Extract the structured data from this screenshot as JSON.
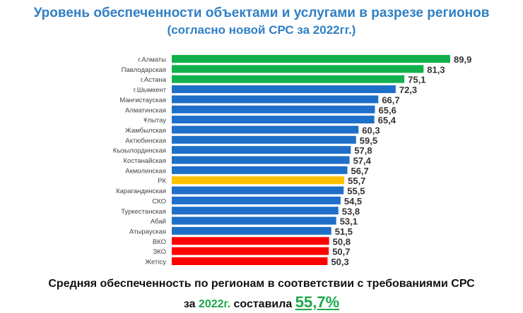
{
  "header": {
    "title": "Уровень обеспеченности объектами и услугами в разрезе регионов",
    "subtitle": "(согласно новой СРС за 2022гг.)"
  },
  "chart_data": {
    "type": "bar",
    "orientation": "horizontal",
    "categories": [
      "г.Алматы",
      "Павлодарская",
      "г.Астана",
      "г.Шымкент",
      "Мангистауская",
      "Алматинская",
      "Ұлытау",
      "Жамбылская",
      "Актюбинская",
      "Кызылординская",
      "Костанайская",
      "Акмолинская",
      "РК",
      "Карагандинская",
      "СКО",
      "Туркестанская",
      "Абай",
      "Атырауская",
      "ВКО",
      "ЗКО",
      "Жетісу"
    ],
    "values": [
      89.9,
      81.3,
      75.1,
      72.3,
      66.7,
      65.6,
      65.4,
      60.3,
      59.5,
      57.8,
      57.4,
      56.7,
      55.7,
      55.5,
      54.5,
      53.8,
      53.1,
      51.5,
      50.8,
      50.7,
      50.3
    ],
    "labels": [
      "89,9",
      "81,3",
      "75,1",
      "72,3",
      "66,7",
      "65,6",
      "65,4",
      "60,3",
      "59,5",
      "57,8",
      "57,4",
      "56,7",
      "55,7",
      "55,5",
      "54,5",
      "53,8",
      "53,1",
      "51,5",
      "50,8",
      "50,7",
      "50,3"
    ],
    "groups": [
      "high",
      "high",
      "high",
      "mid",
      "mid",
      "mid",
      "mid",
      "mid",
      "mid",
      "mid",
      "mid",
      "mid",
      "avg",
      "mid",
      "mid",
      "mid",
      "mid",
      "mid",
      "low",
      "low",
      "low"
    ],
    "colors": {
      "high": "#12b04c",
      "mid": "#1f6fc8",
      "avg": "#ffc000",
      "low": "#ff0000"
    },
    "xlim": [
      0,
      90
    ],
    "grid": false
  },
  "footer": {
    "line1": "Средняя обеспеченность по регионам в соответствии с требованиями СРС",
    "prefix": "за",
    "year": "2022г.",
    "mid": "составила",
    "value": "55,7%"
  }
}
